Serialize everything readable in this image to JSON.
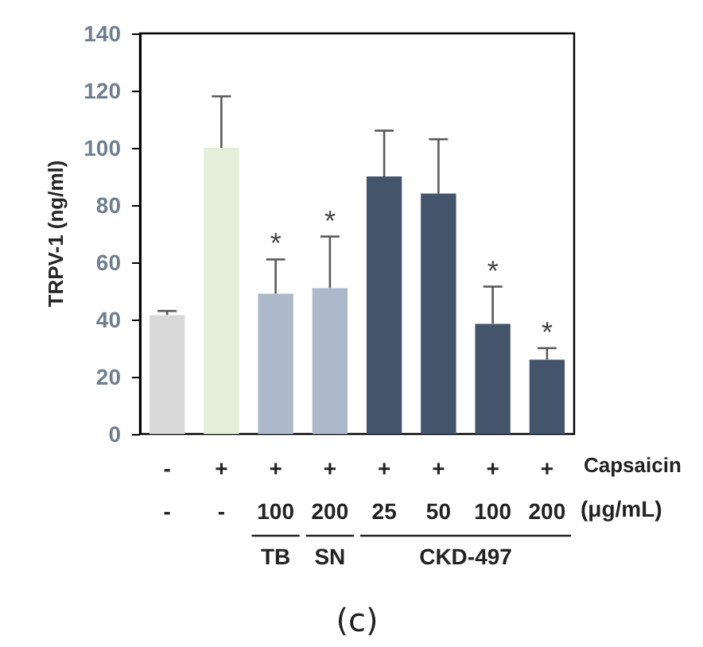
{
  "chart_data": {
    "type": "bar",
    "ylabel": "TRPV-1 (ng/ml)",
    "categories": [
      "-\n-",
      "+\n-",
      "+\n100",
      "+\n200",
      "+\n25",
      "+\n50",
      "+\n100",
      "+\n200"
    ],
    "values": [
      41.5,
      100,
      49,
      51,
      90,
      84,
      38.5,
      26
    ],
    "colors": [
      "#d9d9d9",
      "#e2efda",
      "#adb9ca",
      "#adb9ca",
      "#44546a",
      "#44546a",
      "#44546a",
      "#44546a"
    ],
    "errors": [
      [
        41.5,
        43
      ],
      [
        100,
        118
      ],
      [
        49,
        61
      ],
      [
        51,
        69
      ],
      [
        90,
        106
      ],
      [
        84,
        103
      ],
      [
        38.5,
        51.5
      ],
      [
        26,
        30
      ]
    ],
    "value_labels": [
      null,
      null,
      "*",
      "*",
      null,
      null,
      "*",
      "*"
    ],
    "ylim": [
      0,
      140
    ],
    "yticks": [
      0,
      20,
      40,
      60,
      80,
      100,
      120,
      140
    ],
    "annotations": [
      "Capsaicin",
      "(μg/mL)",
      "TB",
      "SN",
      "CKD-497",
      "(c)"
    ],
    "grid": false
  }
}
